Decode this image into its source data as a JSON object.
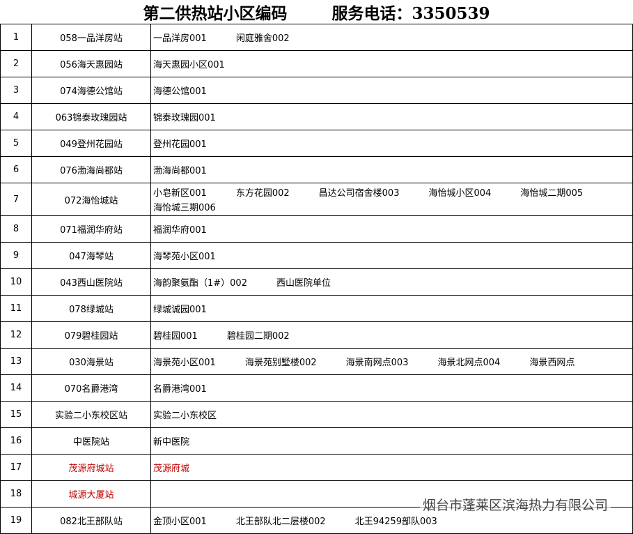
{
  "header": {
    "title": "第二供热站小区编码",
    "phone": "服务电话：3350539"
  },
  "table": {
    "rows": [
      {
        "no": "1",
        "station": "058一品洋房站",
        "items": [
          "一品洋房001",
          "闲庭雅舍002"
        ]
      },
      {
        "no": "2",
        "station": "056海天惠园站",
        "items": [
          "海天惠园小区001"
        ]
      },
      {
        "no": "3",
        "station": "074海德公馆站",
        "items": [
          "海德公馆001"
        ]
      },
      {
        "no": "4",
        "station": "063锦泰玫瑰园站",
        "items": [
          "锦泰玫瑰园001"
        ]
      },
      {
        "no": "5",
        "station": "049登州花园站",
        "items": [
          "登州花园001"
        ]
      },
      {
        "no": "6",
        "station": "076渤海尚都站",
        "items": [
          "渤海尚都001"
        ]
      },
      {
        "no": "7",
        "station": "072海怡城站",
        "items": [
          "小皂新区001",
          "东方花园002",
          "昌达公司宿舍楼003",
          "海怡城小区004",
          "海怡城二期005",
          "海怡城三期006"
        ]
      },
      {
        "no": "8",
        "station": "071福润华府站",
        "items": [
          "福润华府001"
        ]
      },
      {
        "no": "9",
        "station": "047海琴站",
        "items": [
          "海琴苑小区001"
        ]
      },
      {
        "no": "10",
        "station": "043西山医院站",
        "items": [
          "海韵聚氨酯（1#）002",
          "西山医院单位"
        ]
      },
      {
        "no": "11",
        "station": "078绿城站",
        "items": [
          "绿城诚园001"
        ]
      },
      {
        "no": "12",
        "station": "079碧桂园站",
        "items": [
          "碧桂园001",
          "碧桂园二期002"
        ]
      },
      {
        "no": "13",
        "station": "030海景站",
        "items": [
          "海景苑小区001",
          "海景苑别墅楼002",
          "海景南网点003",
          "海景北网点004",
          "海景西网点"
        ]
      },
      {
        "no": "14",
        "station": "070名爵港湾",
        "items": [
          "名爵港湾001"
        ]
      },
      {
        "no": "15",
        "station": "实验二小东校区站",
        "items": [
          "实验二小东校区"
        ]
      },
      {
        "no": "16",
        "station": "中医院站",
        "items": [
          "新中医院"
        ]
      },
      {
        "no": "17",
        "station": "茂源府城站",
        "items": [
          "茂源府城"
        ],
        "color": "#c00000"
      },
      {
        "no": "18",
        "station": "城源大厦站",
        "items": [],
        "color": "#c00000"
      },
      {
        "no": "19",
        "station": "082北王部队站",
        "items": [
          "金顶小区001",
          "北王部队北二层楼002",
          "北王94259部队003"
        ]
      }
    ]
  },
  "watermark": "烟台市蓬莱区滨海热力有限公司"
}
